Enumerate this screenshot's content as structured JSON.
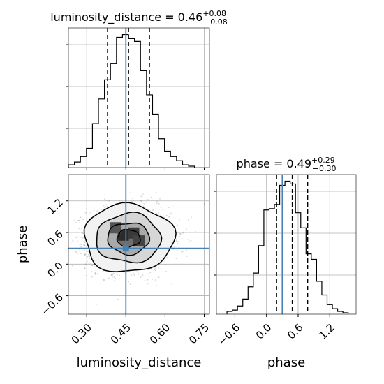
{
  "chart_data": [
    {
      "type": "histogram",
      "panel": "top-left",
      "title": {
        "param": "luminosity_distance",
        "median": "0.46",
        "plus": "+0.08",
        "minus": "−0.08"
      },
      "xlim": [
        0.23,
        0.77
      ],
      "x_ticks": [
        0.3,
        0.45,
        0.6,
        0.75
      ],
      "bin_edges": [
        0.23,
        0.253,
        0.276,
        0.299,
        0.322,
        0.345,
        0.368,
        0.391,
        0.414,
        0.437,
        0.46,
        0.483,
        0.506,
        0.529,
        0.552,
        0.575,
        0.598,
        0.621,
        0.644,
        0.667,
        0.69,
        0.713
      ],
      "counts": [
        2,
        4,
        8,
        14,
        32,
        50,
        64,
        76,
        95,
        97,
        94,
        92,
        71,
        53,
        39,
        21,
        12,
        8,
        5,
        2,
        1
      ],
      "quantiles": [
        0.38,
        0.46,
        0.54
      ],
      "truth": 0.45,
      "grid": true
    },
    {
      "type": "scatter",
      "panel": "bottom-left",
      "subtype": "2d-density-contour",
      "xlabel": "luminosity_distance",
      "ylabel": "phase",
      "xlim": [
        0.23,
        0.77
      ],
      "ylim": [
        -0.95,
        1.7
      ],
      "x_ticks": [
        0.3,
        0.45,
        0.6,
        0.75
      ],
      "x_tick_labels": [
        "0.30",
        "0.45",
        "0.60",
        "0.75"
      ],
      "y_ticks": [
        -0.6,
        0.0,
        0.6,
        1.2
      ],
      "y_tick_labels": [
        "−0.6",
        "0.0",
        "0.6",
        "1.2"
      ],
      "center": [
        0.46,
        0.49
      ],
      "spread": [
        0.08,
        0.3
      ],
      "truth": [
        0.45,
        0.3
      ],
      "grid": true
    },
    {
      "type": "histogram",
      "panel": "bottom-right",
      "title": {
        "param": "phase",
        "median": "0.49",
        "plus": "+0.29",
        "minus": "−0.30"
      },
      "xlabel": "phase",
      "xlim": [
        -0.95,
        1.7
      ],
      "x_ticks": [
        -0.6,
        0.0,
        0.6,
        1.2
      ],
      "x_tick_labels": [
        "−0.6",
        "0.0",
        "0.6",
        "1.2"
      ],
      "bin_edges": [
        -0.75,
        -0.65,
        -0.55,
        -0.45,
        -0.35,
        -0.25,
        -0.15,
        -0.05,
        0.05,
        0.15,
        0.25,
        0.35,
        0.45,
        0.55,
        0.65,
        0.75,
        0.85,
        0.95,
        1.05,
        1.15,
        1.25,
        1.35,
        1.45,
        1.55
      ],
      "counts": [
        2,
        3,
        6,
        11,
        20,
        30,
        50,
        76,
        77,
        80,
        94,
        97,
        95,
        74,
        63,
        44,
        40,
        24,
        14,
        7,
        4,
        2,
        1
      ],
      "quantiles": [
        0.19,
        0.49,
        0.78
      ],
      "truth": 0.3,
      "grid": true
    }
  ]
}
